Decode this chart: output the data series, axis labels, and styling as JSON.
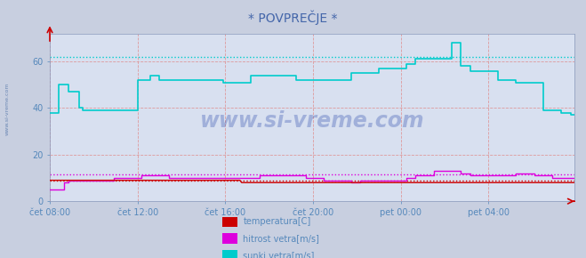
{
  "title": "* POVPREČJE *",
  "bg_color": "#c8cfe0",
  "plot_bg_color": "#d8e0f0",
  "ylim": [
    0,
    72
  ],
  "yticks": [
    0,
    20,
    40,
    60
  ],
  "tick_label_color": "#5588bb",
  "title_color": "#4466aa",
  "watermark": "www.si-vreme.com",
  "watermark_color": "#2244aa",
  "legend_labels": [
    "temperatura[C]",
    "hitrost vetra[m/s]",
    "sunki vetra[m/s]"
  ],
  "legend_colors": [
    "#cc0000",
    "#dd00dd",
    "#00cccc"
  ],
  "xtick_labels": [
    "čet 08:00",
    "čet 12:00",
    "čet 16:00",
    "čet 20:00",
    "pet 00:00",
    "pet 04:00"
  ],
  "xtick_positions": [
    0,
    48,
    96,
    144,
    192,
    240
  ],
  "total_points": 288,
  "temp_color": "#cc0000",
  "wind_color": "#dd00dd",
  "gust_color": "#00cccc",
  "temp_dot_y": 9.0,
  "wind_dot_y": 11.5,
  "gust_dot_y": 62.0,
  "temp_data": [
    9,
    9,
    9,
    9,
    9,
    9,
    9,
    9,
    9,
    9,
    9,
    9,
    9,
    9,
    9,
    9,
    9,
    9,
    9,
    9,
    9,
    9,
    9,
    9,
    9,
    9,
    9,
    9,
    9,
    9,
    9,
    9,
    9,
    9,
    9,
    9,
    9,
    9,
    9,
    9,
    9,
    9,
    9,
    9,
    9,
    9,
    9,
    9,
    9,
    9,
    9,
    9,
    9,
    9,
    9,
    9,
    9,
    9,
    9,
    9,
    9,
    9,
    9,
    9,
    9,
    9,
    9,
    9,
    9,
    9,
    9,
    9,
    9,
    9,
    9,
    9,
    9,
    9,
    9,
    9,
    9,
    9,
    9,
    9,
    9,
    9,
    9,
    9,
    9,
    9,
    9,
    9,
    9,
    9,
    9,
    9,
    9,
    9,
    9,
    9,
    9,
    9,
    9,
    9,
    9,
    8,
    8,
    8,
    8,
    8,
    8,
    8,
    8,
    8,
    8,
    8,
    8,
    8,
    8,
    8,
    8,
    8,
    8,
    8,
    8,
    8,
    8,
    8,
    8,
    8,
    8,
    8,
    8,
    8,
    8,
    8,
    8,
    8,
    8,
    8,
    8,
    8,
    8,
    8,
    8,
    8,
    8,
    8,
    8,
    8,
    8,
    8,
    8,
    8,
    8,
    8,
    8,
    8,
    8,
    8,
    8,
    8,
    8,
    8,
    8,
    8,
    8,
    8,
    8,
    8,
    8,
    8,
    8,
    8,
    8,
    8,
    8,
    8,
    8,
    8,
    8,
    8,
    8,
    8,
    8,
    8,
    8,
    8,
    8,
    8,
    8,
    8,
    8,
    8,
    8,
    8,
    8,
    8,
    8,
    8,
    8,
    8,
    8,
    8,
    8,
    8,
    8,
    8,
    8,
    8,
    8,
    8,
    8,
    8,
    8,
    8,
    8,
    8,
    8,
    8,
    8,
    8,
    8,
    8,
    8,
    8,
    8,
    8,
    8,
    8,
    8,
    8,
    8,
    8,
    8,
    8,
    8,
    8,
    8,
    8,
    8,
    8,
    8,
    8,
    8,
    8,
    8,
    8,
    8,
    8,
    8,
    8,
    8,
    8,
    8,
    8,
    8,
    8,
    8,
    8,
    8,
    8,
    8,
    8,
    8,
    8,
    8,
    8,
    8,
    8,
    8,
    8,
    8,
    8,
    8,
    8,
    8,
    8,
    8,
    8,
    8,
    8,
    8,
    8,
    8,
    8,
    8,
    8,
    8
  ],
  "wind_data_raw": [
    [
      0,
      5
    ],
    [
      5,
      5
    ],
    [
      8,
      8
    ],
    [
      10,
      9
    ],
    [
      15,
      9
    ],
    [
      20,
      9
    ],
    [
      25,
      9
    ],
    [
      30,
      9
    ],
    [
      35,
      10
    ],
    [
      48,
      10
    ],
    [
      50,
      11
    ],
    [
      55,
      11
    ],
    [
      65,
      10
    ],
    [
      75,
      10
    ],
    [
      85,
      10
    ],
    [
      95,
      10
    ],
    [
      105,
      10
    ],
    [
      115,
      11
    ],
    [
      120,
      11
    ],
    [
      130,
      11
    ],
    [
      140,
      10
    ],
    [
      150,
      9
    ],
    [
      155,
      9
    ],
    [
      165,
      8
    ],
    [
      170,
      9
    ],
    [
      175,
      9
    ],
    [
      180,
      9
    ],
    [
      190,
      9
    ],
    [
      195,
      10
    ],
    [
      200,
      11
    ],
    [
      210,
      13
    ],
    [
      220,
      13
    ],
    [
      225,
      12
    ],
    [
      230,
      11
    ],
    [
      240,
      11
    ],
    [
      250,
      11
    ],
    [
      255,
      12
    ],
    [
      260,
      12
    ],
    [
      265,
      11
    ],
    [
      270,
      11
    ],
    [
      275,
      10
    ],
    [
      280,
      10
    ],
    [
      287,
      10
    ]
  ],
  "gust_data_raw": [
    [
      0,
      38
    ],
    [
      5,
      50
    ],
    [
      8,
      50
    ],
    [
      10,
      47
    ],
    [
      16,
      40
    ],
    [
      18,
      39
    ],
    [
      45,
      39
    ],
    [
      48,
      52
    ],
    [
      55,
      54
    ],
    [
      60,
      52
    ],
    [
      95,
      51
    ],
    [
      100,
      51
    ],
    [
      105,
      51
    ],
    [
      110,
      54
    ],
    [
      125,
      54
    ],
    [
      135,
      52
    ],
    [
      160,
      52
    ],
    [
      165,
      55
    ],
    [
      175,
      55
    ],
    [
      180,
      57
    ],
    [
      190,
      57
    ],
    [
      195,
      59
    ],
    [
      200,
      61
    ],
    [
      215,
      61
    ],
    [
      220,
      68
    ],
    [
      222,
      68
    ],
    [
      225,
      58
    ],
    [
      230,
      56
    ],
    [
      240,
      56
    ],
    [
      245,
      52
    ],
    [
      250,
      52
    ],
    [
      255,
      51
    ],
    [
      265,
      51
    ],
    [
      270,
      39
    ],
    [
      280,
      38
    ],
    [
      285,
      37
    ],
    [
      287,
      37
    ]
  ]
}
